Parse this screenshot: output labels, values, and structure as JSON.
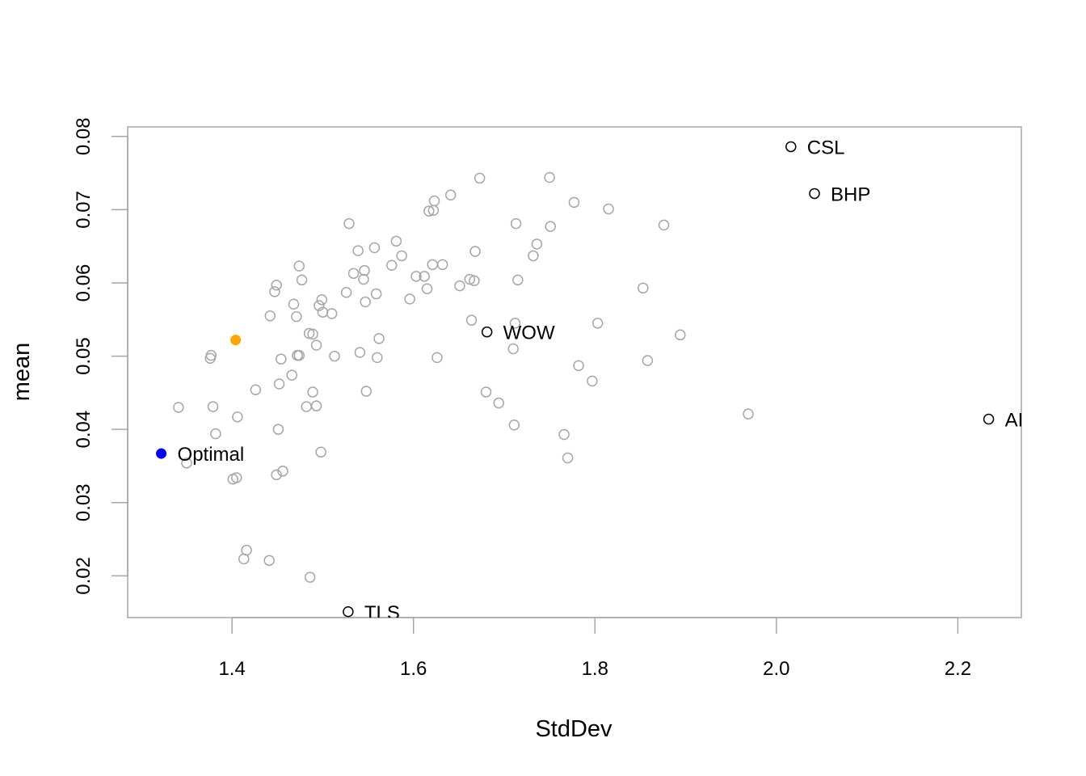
{
  "chart_data": {
    "type": "scatter",
    "title": "",
    "xlabel": "StdDev",
    "ylabel": "mean",
    "xlim": [
      1.285,
      2.27
    ],
    "ylim": [
      0.0143,
      0.0813
    ],
    "xticks": [
      1.4,
      1.6,
      1.8,
      2.0,
      2.2
    ],
    "yticks": [
      0.02,
      0.03,
      0.04,
      0.05,
      0.06,
      0.07,
      0.08
    ],
    "xtick_labels": [
      "1.4",
      "1.6",
      "1.8",
      "2.0",
      "2.2"
    ],
    "ytick_labels": [
      "0.02",
      "0.03",
      "0.04",
      "0.05",
      "0.06",
      "0.07",
      "0.08"
    ],
    "grid": false,
    "colors": {
      "random_portfolios": "#a6a6a6",
      "assets": "#000000",
      "optimal": "#0000ff",
      "highlight": "#ffa500",
      "frame": "#a6a6a6"
    },
    "series": [
      {
        "name": "random_portfolios",
        "style": "open-circle",
        "points": [
          [
            1.341,
            0.043
          ],
          [
            1.35,
            0.0354
          ],
          [
            1.377,
            0.0501
          ],
          [
            1.376,
            0.0497
          ],
          [
            1.379,
            0.0431
          ],
          [
            1.382,
            0.0394
          ],
          [
            1.401,
            0.0332
          ],
          [
            1.405,
            0.0334
          ],
          [
            1.406,
            0.0417
          ],
          [
            1.413,
            0.0223
          ],
          [
            1.416,
            0.0235
          ],
          [
            1.426,
            0.0454
          ],
          [
            1.441,
            0.0221
          ],
          [
            1.442,
            0.0555
          ],
          [
            1.447,
            0.0588
          ],
          [
            1.449,
            0.0597
          ],
          [
            1.449,
            0.0338
          ],
          [
            1.451,
            0.04
          ],
          [
            1.452,
            0.0462
          ],
          [
            1.454,
            0.0496
          ],
          [
            1.456,
            0.0343
          ],
          [
            1.466,
            0.0474
          ],
          [
            1.468,
            0.0571
          ],
          [
            1.471,
            0.0554
          ],
          [
            1.472,
            0.0501
          ],
          [
            1.474,
            0.0501
          ],
          [
            1.474,
            0.0623
          ],
          [
            1.477,
            0.0604
          ],
          [
            1.482,
            0.0431
          ],
          [
            1.485,
            0.0531
          ],
          [
            1.486,
            0.0198
          ],
          [
            1.489,
            0.053
          ],
          [
            1.489,
            0.0451
          ],
          [
            1.493,
            0.0515
          ],
          [
            1.493,
            0.0432
          ],
          [
            1.496,
            0.0569
          ],
          [
            1.498,
            0.0369
          ],
          [
            1.499,
            0.0577
          ],
          [
            1.5,
            0.056
          ],
          [
            1.51,
            0.0558
          ],
          [
            1.513,
            0.05
          ],
          [
            1.526,
            0.0587
          ],
          [
            1.529,
            0.0681
          ],
          [
            1.534,
            0.0613
          ],
          [
            1.539,
            0.0644
          ],
          [
            1.541,
            0.0505
          ],
          [
            1.545,
            0.0605
          ],
          [
            1.546,
            0.0617
          ],
          [
            1.547,
            0.0574
          ],
          [
            1.548,
            0.0452
          ],
          [
            1.557,
            0.0648
          ],
          [
            1.559,
            0.0585
          ],
          [
            1.56,
            0.0498
          ],
          [
            1.562,
            0.0524
          ],
          [
            1.576,
            0.0624
          ],
          [
            1.581,
            0.0657
          ],
          [
            1.587,
            0.0637
          ],
          [
            1.596,
            0.0578
          ],
          [
            1.603,
            0.0609
          ],
          [
            1.612,
            0.0609
          ],
          [
            1.615,
            0.0592
          ],
          [
            1.617,
            0.0698
          ],
          [
            1.621,
            0.0625
          ],
          [
            1.622,
            0.0699
          ],
          [
            1.623,
            0.0712
          ],
          [
            1.626,
            0.0498
          ],
          [
            1.632,
            0.0625
          ],
          [
            1.641,
            0.072
          ],
          [
            1.651,
            0.0596
          ],
          [
            1.662,
            0.0605
          ],
          [
            1.664,
            0.0549
          ],
          [
            1.667,
            0.0603
          ],
          [
            1.668,
            0.0643
          ],
          [
            1.673,
            0.0743
          ],
          [
            1.68,
            0.0451
          ],
          [
            1.694,
            0.0436
          ],
          [
            1.71,
            0.051
          ],
          [
            1.711,
            0.0406
          ],
          [
            1.712,
            0.0545
          ],
          [
            1.713,
            0.0681
          ],
          [
            1.715,
            0.0604
          ],
          [
            1.732,
            0.0637
          ],
          [
            1.736,
            0.0653
          ],
          [
            1.75,
            0.0744
          ],
          [
            1.751,
            0.0677
          ],
          [
            1.766,
            0.0393
          ],
          [
            1.77,
            0.0361
          ],
          [
            1.777,
            0.071
          ],
          [
            1.782,
            0.0487
          ],
          [
            1.797,
            0.0466
          ],
          [
            1.803,
            0.0545
          ],
          [
            1.815,
            0.0701
          ],
          [
            1.853,
            0.0593
          ],
          [
            1.858,
            0.0494
          ],
          [
            1.876,
            0.0679
          ],
          [
            1.894,
            0.0529
          ],
          [
            1.969,
            0.0421
          ]
        ]
      },
      {
        "name": "assets",
        "style": "open-circle",
        "points": [
          {
            "x": 2.016,
            "y": 0.0786,
            "label": "CSL"
          },
          {
            "x": 2.042,
            "y": 0.0722,
            "label": "BHP"
          },
          {
            "x": 1.681,
            "y": 0.0533,
            "label": "WOW"
          },
          {
            "x": 2.234,
            "y": 0.0414,
            "label": "AI"
          },
          {
            "x": 1.528,
            "y": 0.0151,
            "label": "TLS"
          }
        ]
      },
      {
        "name": "optimal",
        "style": "filled-circle",
        "points": [
          {
            "x": 1.322,
            "y": 0.0367,
            "label": "Optimal"
          }
        ]
      },
      {
        "name": "highlight",
        "style": "filled-circle",
        "points": [
          {
            "x": 1.404,
            "y": 0.0522
          }
        ]
      }
    ]
  }
}
